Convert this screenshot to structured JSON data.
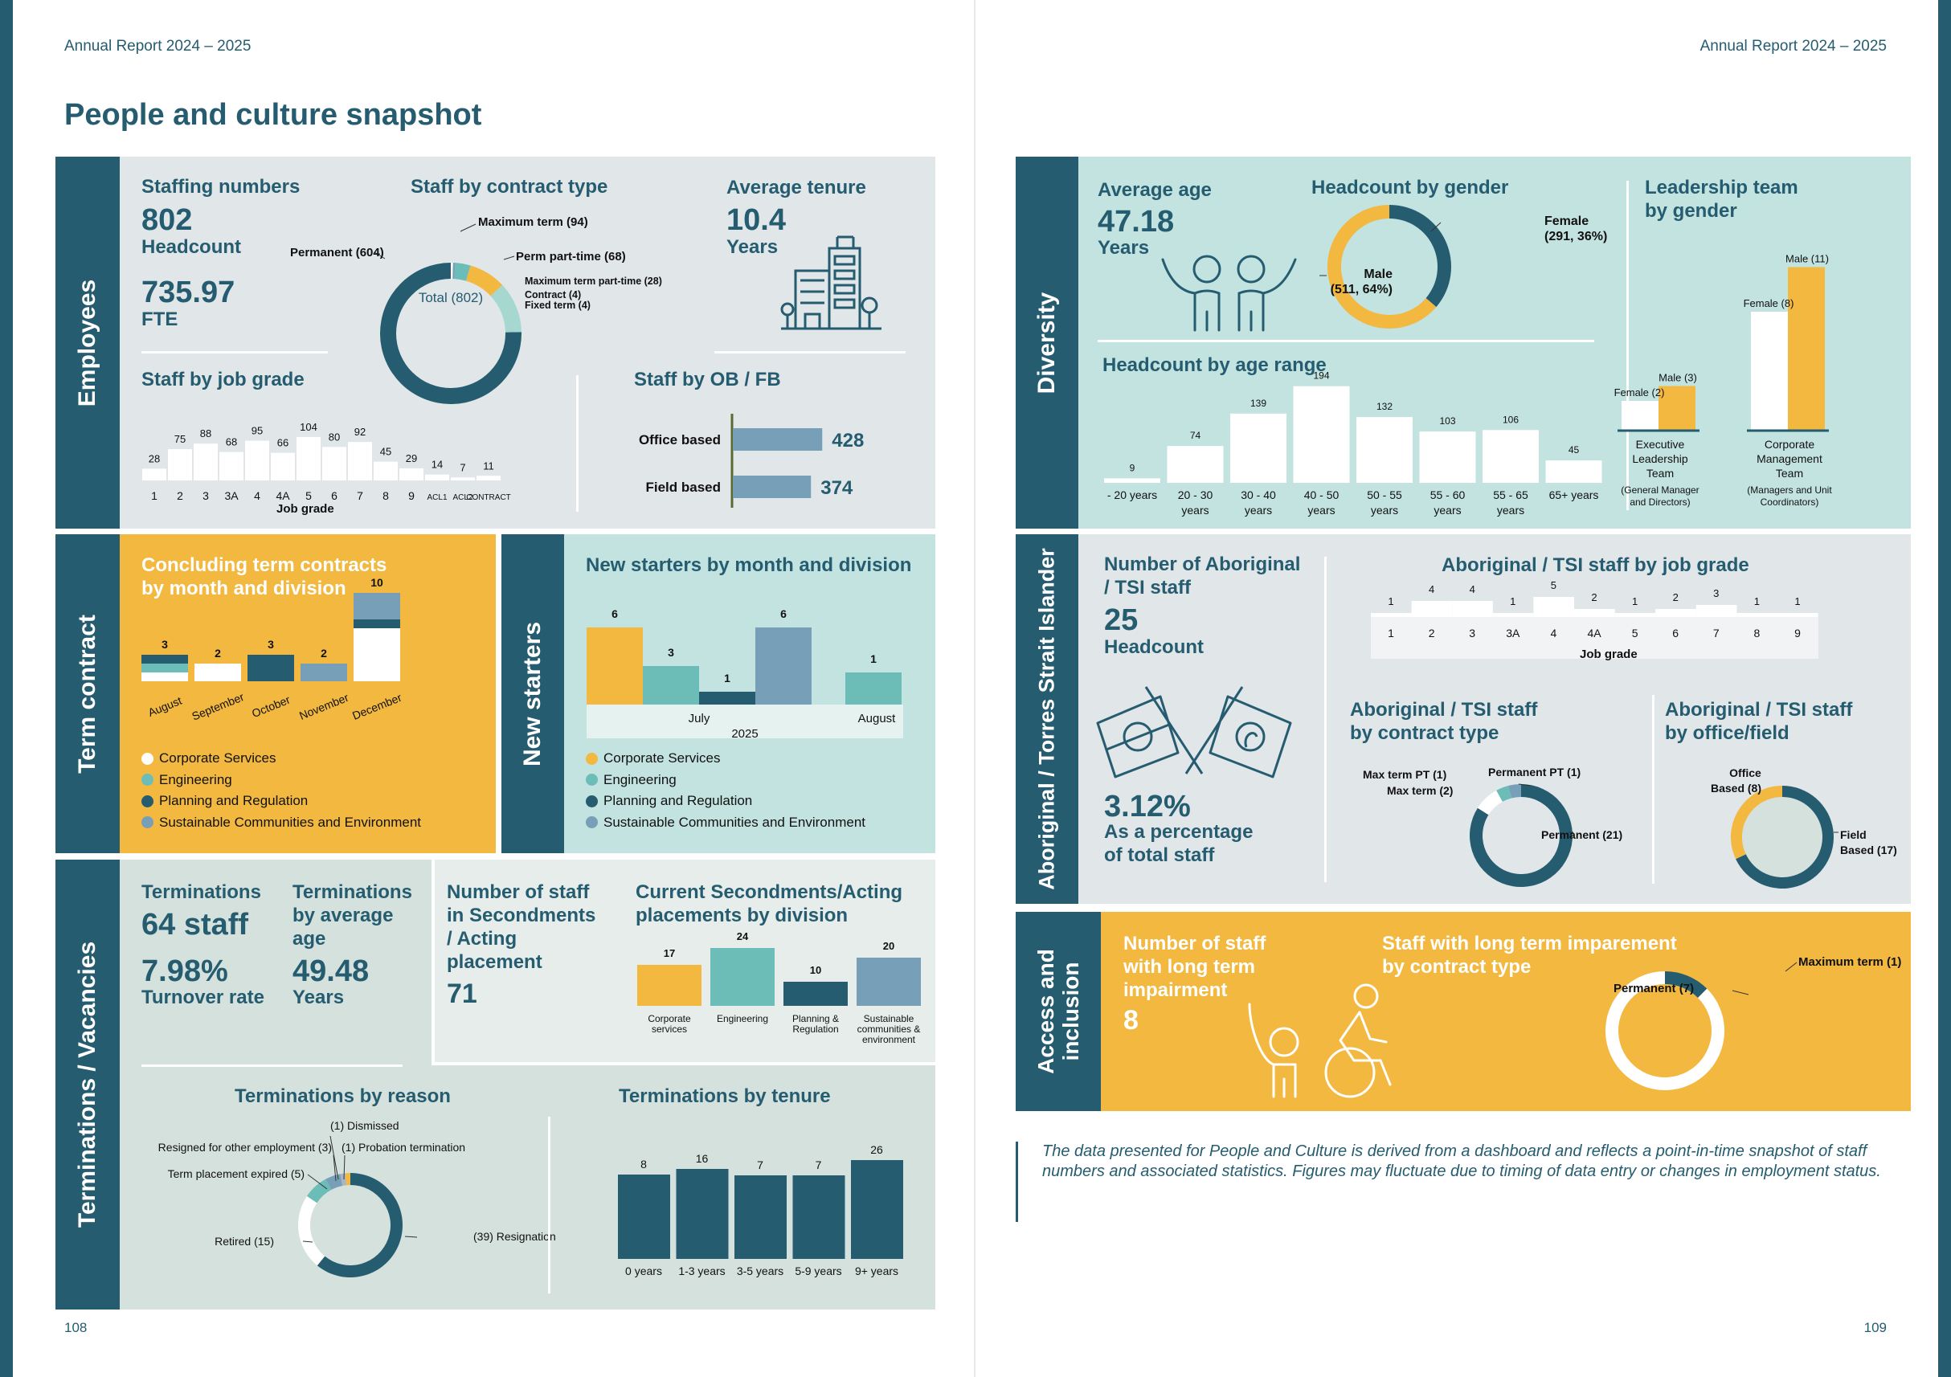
{
  "header": {
    "left": "Annual Report 2024 – 2025",
    "right": "Annual Report 2024 – 2025"
  },
  "title": "People and culture snapshot",
  "page_numbers": {
    "left": "108",
    "right": "109"
  },
  "colors": {
    "dark": "#255c70",
    "teal": "#6cbdb7",
    "yellow": "#f2b840",
    "steel": "#789fb8",
    "white": "#ffffff",
    "grey_panel": "#e1e6e9",
    "mint_panel": "#c3e3e0",
    "sage_panel": "#d5e1dc"
  },
  "sections": {
    "employees": "Employees",
    "term": "Term contract",
    "new_starters": "New starters",
    "terminations": "Terminations / Vacancies",
    "diversity": "Diversity",
    "aboriginal": "Aboriginal / Torres Strait Islander",
    "access": [
      "Access and",
      "inclusion"
    ]
  },
  "staffing": {
    "title": "Staffing numbers",
    "headcount": "802",
    "headcount_label": "Headcount",
    "fte": "735.97",
    "fte_label": "FTE"
  },
  "contract": {
    "title": "Staff by contract type",
    "center": "Total (802)",
    "labels": {
      "permanent": "Permanent (604)",
      "max_term": "Maximum term (94)",
      "perm_pt": "Perm part-time (68)",
      "max_pt": "Maximum term part-time (28)",
      "contract": "Contract (4)",
      "fixed": "Fixed term (4)"
    }
  },
  "tenure": {
    "title": "Average tenure",
    "value": "10.4",
    "unit": "Years",
    "icon": "office-building-icon"
  },
  "obfb": {
    "title": "Staff by OB / FB"
  },
  "term_contracts": {
    "title": [
      "Concluding term contracts",
      "by month and division"
    ]
  },
  "new_starters": {
    "title": "New starters by month and division",
    "year": "2025"
  },
  "legend": [
    "Corporate Services",
    "Engineering",
    "Planning and Regulation",
    "Sustainable Communities and Environment"
  ],
  "terminations": {
    "t1": "Terminations",
    "t1_value": "64 staff",
    "turnover": "7.98%",
    "turnover_label": "Turnover rate",
    "t2": [
      "Terminations",
      "by average",
      "age"
    ],
    "age": "49.48",
    "age_unit": "Years"
  },
  "secondments": {
    "title": [
      "Number of staff",
      "in Secondments",
      "/ Acting",
      "placement"
    ],
    "value": "71"
  },
  "diversity": {
    "age_title": "Average age",
    "age": "47.18",
    "age_unit": "Years",
    "age_icon": "two-people-waving-icon",
    "ageband_title": "Headcount by age range"
  },
  "gender": {
    "title": "Headcount by gender",
    "male": [
      "Male",
      "(511, 64%)"
    ],
    "female": [
      "Female",
      "(291, 36%)"
    ]
  },
  "leadership": {
    "title": [
      "Leadership team",
      "by gender"
    ],
    "groups": [
      {
        "name": [
          "Executive",
          "Leadership",
          "Team"
        ],
        "sub": [
          "(General Manager",
          "and Directors)"
        ],
        "female": "Female (2)",
        "male": "Male (3)"
      },
      {
        "name": [
          "Corporate",
          "Management",
          "Team"
        ],
        "sub": [
          "(Managers and Unit",
          "Coordinators)"
        ],
        "female": "Female (8)",
        "male": "Male (11)"
      }
    ]
  },
  "atsi": {
    "title": [
      "Number of Aboriginal",
      "/ TSI staff"
    ],
    "value": "25",
    "value_label": "Headcount",
    "pct": "3.12%",
    "pct_label": [
      "As a percentage",
      "of total staff"
    ],
    "flag_icon": "crossed-flags-icon",
    "grade_title": "Aboriginal / TSI staff by job grade",
    "contract_title": [
      "Aboriginal / TSI staff",
      "by contract type"
    ],
    "contract_labels": {
      "maxpt": "Max term PT (1)",
      "max": "Max term (2)",
      "permpt": "Permanent PT (1)",
      "perm": "Permanent (21)"
    },
    "office_title": [
      "Aboriginal / TSI staff",
      "by office/field"
    ],
    "office_labels": {
      "office": [
        "Office",
        "Based (8)"
      ],
      "field": [
        "Field",
        "Based (17)"
      ]
    }
  },
  "access": {
    "title": [
      "Number of staff",
      "with long term",
      "impairment"
    ],
    "value": "8",
    "icon": "wheelchair-user-icon",
    "chart_title": [
      "Staff with long term imparement",
      "by contract type"
    ],
    "labels": {
      "perm": "Permanent (7)",
      "max": "Maximum term (1)"
    }
  },
  "note": "The data presented for People and Culture is derived from a dashboard and reflects a point-in-time snapshot of staff numbers and associated statistics. Figures may fluctuate due to timing of data entry or changes in employment status.",
  "chart_data": [
    {
      "id": "contract",
      "type": "pie",
      "title": "Staff by contract type",
      "labels": [
        "Permanent",
        "Maximum term",
        "Perm part-time",
        "Maximum term part-time",
        "Contract",
        "Fixed term"
      ],
      "values": [
        604,
        94,
        68,
        28,
        4,
        4
      ]
    },
    {
      "id": "jobgrade",
      "type": "bar",
      "title": "Staff by job grade",
      "xlabel": "Job grade",
      "categories": [
        "1",
        "2",
        "3",
        "3A",
        "4",
        "4A",
        "5",
        "6",
        "7",
        "8",
        "9",
        "ACL1",
        "ACL2",
        "CONTRACT"
      ],
      "values": [
        28,
        75,
        88,
        68,
        95,
        66,
        104,
        80,
        92,
        45,
        29,
        14,
        7,
        11
      ]
    },
    {
      "id": "obfb",
      "type": "bar",
      "title": "Staff by OB / FB",
      "categories": [
        "Office based",
        "Field based"
      ],
      "values": [
        428,
        374
      ]
    },
    {
      "id": "termcontracts",
      "type": "bar",
      "title": "Concluding term contracts by month and division",
      "categories": [
        "August",
        "September",
        "October",
        "November",
        "December"
      ],
      "totals": [
        3,
        2,
        3,
        2,
        10
      ],
      "series": [
        {
          "name": "Corporate Services",
          "values": [
            1,
            2,
            0,
            0,
            6
          ]
        },
        {
          "name": "Engineering",
          "values": [
            1,
            0,
            0,
            0,
            0
          ]
        },
        {
          "name": "Planning and Regulation",
          "values": [
            1,
            0,
            3,
            0,
            1
          ]
        },
        {
          "name": "Sustainable Communities and Environment",
          "values": [
            0,
            0,
            0,
            2,
            3
          ]
        }
      ]
    },
    {
      "id": "newstarters",
      "type": "bar",
      "title": "New starters by month and division",
      "categories": [
        "July",
        "August"
      ],
      "values_july": [
        {
          "division": "Corporate Services",
          "value": 6
        },
        {
          "division": "Engineering",
          "value": 3
        },
        {
          "division": "Planning and Regulation",
          "value": 1
        },
        {
          "division": "Sustainable Communities and Environment",
          "value": 6
        }
      ],
      "values_august": [
        {
          "division": "Engineering",
          "value": 1
        }
      ]
    },
    {
      "id": "secondments",
      "type": "bar",
      "title": "Current Secondments/Acting placements by division",
      "categories": [
        "Corporate services",
        "Engineering",
        "Planning & Regulation",
        "Sustainable communities & environment"
      ],
      "values": [
        17,
        24,
        10,
        20
      ]
    },
    {
      "id": "reasons",
      "type": "pie",
      "title": "Terminations by reason",
      "labels": [
        "Resignation",
        "Retired",
        "Term placement expired",
        "Resigned for other employment",
        "Dismissed",
        "Probation termination"
      ],
      "values": [
        39,
        15,
        5,
        3,
        1,
        1
      ],
      "label_text": [
        "(39) Resignation",
        "Retired (15)",
        "Term placement expired (5)",
        "Resigned for other employment (3)",
        "(1) Dismissed",
        "(1) Probation termination"
      ]
    },
    {
      "id": "tenure",
      "type": "bar",
      "title": "Terminations by tenure",
      "categories": [
        "0 years",
        "1-3 years",
        "3-5 years",
        "5-9 years",
        "9+ years"
      ],
      "values": [
        8,
        16,
        7,
        7,
        26
      ]
    },
    {
      "id": "gender",
      "type": "pie",
      "title": "Headcount by gender",
      "labels": [
        "Male",
        "Female"
      ],
      "values": [
        511,
        291
      ]
    },
    {
      "id": "agerange",
      "type": "bar",
      "title": "Headcount by age range",
      "categories": [
        "- 20 years",
        "20 - 30 years",
        "30 - 40 years",
        "40 - 50 years",
        "50 - 55 years",
        "55 - 60 years",
        "55 - 65 years",
        "65+ years"
      ],
      "values": [
        9,
        74,
        139,
        194,
        132,
        103,
        106,
        45
      ]
    },
    {
      "id": "leadership",
      "type": "bar",
      "title": "Leadership team by gender",
      "categories": [
        "Executive Leadership Team",
        "Corporate Management Team"
      ],
      "series": [
        {
          "name": "Female",
          "values": [
            2,
            8
          ]
        },
        {
          "name": "Male",
          "values": [
            3,
            11
          ]
        }
      ]
    },
    {
      "id": "atsigrade",
      "type": "bar",
      "title": "Aboriginal / TSI staff by job grade",
      "xlabel": "Job grade",
      "categories": [
        "1",
        "2",
        "3",
        "3A",
        "4",
        "4A",
        "5",
        "6",
        "7",
        "8",
        "9"
      ],
      "values": [
        1,
        4,
        4,
        1,
        5,
        2,
        1,
        2,
        3,
        1,
        1
      ]
    },
    {
      "id": "atsicontract",
      "type": "pie",
      "title": "Aboriginal / TSI staff by contract type",
      "labels": [
        "Permanent",
        "Max term",
        "Max term PT",
        "Permanent PT"
      ],
      "values": [
        21,
        2,
        1,
        1
      ]
    },
    {
      "id": "atsioffice",
      "type": "pie",
      "title": "Aboriginal / TSI staff by office/field",
      "labels": [
        "Field Based",
        "Office Based"
      ],
      "values": [
        17,
        8
      ]
    },
    {
      "id": "impairment",
      "type": "pie",
      "title": "Staff with long term imparement by contract type",
      "labels": [
        "Permanent",
        "Maximum term"
      ],
      "values": [
        7,
        1
      ]
    }
  ]
}
